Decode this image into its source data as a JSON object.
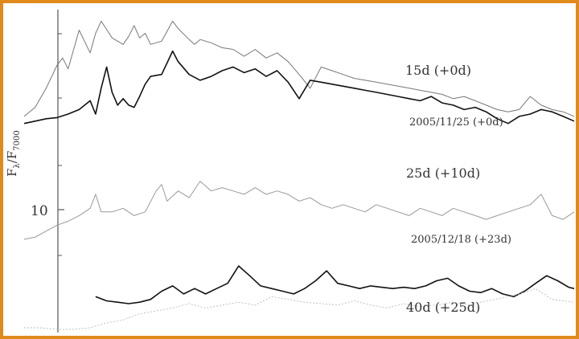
{
  "colors": {
    "frame": "#e08a1e",
    "axis": "#555555",
    "text": "#333333"
  },
  "chart_data": {
    "type": "line",
    "title": "",
    "xlabel": "",
    "ylabel": "F_λ / F_7000",
    "ylabel_main": "F",
    "ylabel_sub1": "λ",
    "ylabel_sep": "/F",
    "ylabel_sub2": "7000",
    "y_scale": "log",
    "y_tick_labels": [
      {
        "label": "10",
        "value": 10
      }
    ],
    "ylim": [
      6.4,
      30
    ],
    "xlim": [
      0,
      1
    ],
    "grid": false,
    "series": [
      {
        "name": "15d (+0d)",
        "label": "15d (+0d)",
        "color": "#777777",
        "width": 1.0,
        "x": [
          0.0,
          0.02,
          0.04,
          0.06,
          0.07,
          0.08,
          0.09,
          0.1,
          0.12,
          0.13,
          0.14,
          0.16,
          0.18,
          0.19,
          0.2,
          0.21,
          0.22,
          0.23,
          0.25,
          0.27,
          0.28,
          0.3,
          0.31,
          0.32,
          0.34,
          0.36,
          0.38,
          0.4,
          0.42,
          0.44,
          0.46,
          0.48,
          0.5,
          0.52,
          0.54,
          0.56,
          0.58,
          0.6,
          0.62,
          0.64,
          0.66,
          0.68,
          0.7,
          0.72,
          0.74,
          0.76,
          0.78,
          0.8,
          0.82,
          0.84,
          0.86,
          0.88,
          0.9,
          0.92,
          0.94,
          0.96,
          0.98,
          1.0
        ],
        "y": [
          18.0,
          18.8,
          20.6,
          23.0,
          23.8,
          22.6,
          24.8,
          27.2,
          24.4,
          26.8,
          28.4,
          26.2,
          25.4,
          26.4,
          27.8,
          26.2,
          26.8,
          25.4,
          25.8,
          28.4,
          27.4,
          26.0,
          25.4,
          26.0,
          25.6,
          25.0,
          24.8,
          24.0,
          24.8,
          23.8,
          24.4,
          23.4,
          22.0,
          20.6,
          22.8,
          22.4,
          22.0,
          21.6,
          21.4,
          21.2,
          21.0,
          20.8,
          20.6,
          20.4,
          20.2,
          20.0,
          19.6,
          19.8,
          19.4,
          19.0,
          18.6,
          18.4,
          18.6,
          19.8,
          19.0,
          18.6,
          18.4,
          18.0
        ]
      },
      {
        "name": "2005/11/25 (+0d)",
        "label": "2005/11/25 (+0d)",
        "color": "#111111",
        "width": 1.6,
        "x": [
          0.0,
          0.02,
          0.04,
          0.06,
          0.08,
          0.1,
          0.12,
          0.13,
          0.14,
          0.15,
          0.16,
          0.17,
          0.18,
          0.19,
          0.2,
          0.21,
          0.22,
          0.23,
          0.25,
          0.27,
          0.28,
          0.3,
          0.32,
          0.34,
          0.36,
          0.38,
          0.4,
          0.42,
          0.44,
          0.46,
          0.48,
          0.5,
          0.52,
          0.54,
          0.56,
          0.58,
          0.6,
          0.62,
          0.64,
          0.66,
          0.68,
          0.7,
          0.72,
          0.74,
          0.76,
          0.78,
          0.8,
          0.82,
          0.84,
          0.86,
          0.88,
          0.9,
          0.92,
          0.94,
          0.96,
          0.98,
          1.0
        ],
        "y": [
          17.4,
          17.6,
          17.8,
          17.9,
          18.2,
          18.6,
          19.4,
          18.2,
          20.6,
          22.8,
          20.2,
          19.0,
          19.6,
          19.0,
          18.8,
          19.8,
          21.0,
          21.8,
          22.0,
          24.6,
          23.4,
          22.0,
          21.4,
          21.8,
          22.4,
          22.8,
          22.2,
          22.6,
          21.8,
          22.4,
          21.2,
          19.6,
          21.4,
          21.2,
          21.0,
          20.8,
          20.6,
          20.4,
          20.2,
          20.0,
          19.8,
          19.6,
          19.4,
          19.8,
          19.2,
          19.0,
          18.6,
          18.8,
          18.4,
          17.8,
          17.4,
          18.0,
          18.2,
          18.6,
          18.4,
          18.0,
          17.6
        ]
      },
      {
        "name": "25d (+10d)",
        "label": "25d (+10d)",
        "color": "#999999",
        "width": 1.0,
        "x": [
          0.0,
          0.02,
          0.04,
          0.06,
          0.08,
          0.1,
          0.12,
          0.13,
          0.14,
          0.16,
          0.18,
          0.2,
          0.22,
          0.24,
          0.25,
          0.26,
          0.28,
          0.3,
          0.32,
          0.34,
          0.36,
          0.38,
          0.4,
          0.42,
          0.44,
          0.46,
          0.48,
          0.5,
          0.52,
          0.54,
          0.56,
          0.58,
          0.6,
          0.62,
          0.64,
          0.66,
          0.68,
          0.7,
          0.72,
          0.74,
          0.76,
          0.78,
          0.8,
          0.82,
          0.84,
          0.86,
          0.88,
          0.9,
          0.92,
          0.94,
          0.96,
          0.98,
          1.0
        ],
        "y": [
          10.0,
          10.1,
          10.4,
          10.7,
          10.9,
          11.2,
          11.6,
          12.4,
          11.4,
          11.4,
          11.6,
          11.2,
          11.4,
          12.6,
          13.0,
          12.0,
          12.6,
          12.2,
          13.2,
          12.6,
          12.8,
          12.6,
          12.4,
          12.8,
          12.4,
          12.6,
          12.4,
          12.0,
          12.2,
          11.8,
          11.6,
          11.8,
          11.6,
          11.4,
          11.8,
          11.6,
          11.4,
          11.2,
          11.6,
          11.4,
          11.2,
          11.6,
          11.4,
          11.2,
          11.0,
          11.2,
          11.4,
          11.6,
          11.8,
          12.4,
          11.2,
          11.0,
          11.4
        ]
      },
      {
        "name": "2005/12/18 (+23d)",
        "label": "2005/12/18 (+23d)",
        "color": "#111111",
        "width": 1.6,
        "x": [
          0.13,
          0.15,
          0.17,
          0.19,
          0.21,
          0.23,
          0.25,
          0.27,
          0.29,
          0.31,
          0.33,
          0.35,
          0.37,
          0.39,
          0.41,
          0.43,
          0.45,
          0.47,
          0.49,
          0.51,
          0.53,
          0.55,
          0.57,
          0.59,
          0.61,
          0.63,
          0.65,
          0.67,
          0.69,
          0.71,
          0.73,
          0.75,
          0.77,
          0.79,
          0.81,
          0.83,
          0.85,
          0.87,
          0.89,
          0.91,
          0.93,
          0.95,
          0.97,
          0.99,
          1.0
        ],
        "y": [
          7.6,
          7.45,
          7.4,
          7.35,
          7.4,
          7.5,
          7.8,
          8.0,
          7.7,
          7.9,
          7.7,
          7.9,
          8.1,
          8.8,
          8.4,
          8.0,
          7.9,
          7.8,
          7.7,
          7.9,
          8.2,
          8.6,
          8.1,
          8.0,
          7.9,
          8.0,
          7.95,
          7.9,
          7.95,
          7.9,
          8.0,
          8.2,
          8.3,
          8.0,
          7.8,
          7.75,
          7.9,
          7.7,
          7.6,
          7.8,
          8.1,
          8.4,
          8.2,
          7.95,
          7.9
        ]
      },
      {
        "name": "40d (+25d)",
        "label": "40d (+25d)",
        "color": "#bbbbbb",
        "width": 0.9,
        "dash": "2,2",
        "x": [
          0.0,
          0.03,
          0.06,
          0.09,
          0.12,
          0.15,
          0.18,
          0.21,
          0.24,
          0.27,
          0.3,
          0.33,
          0.36,
          0.39,
          0.42,
          0.45,
          0.48,
          0.51,
          0.54,
          0.57,
          0.6,
          0.63,
          0.66,
          0.69,
          0.72,
          0.75,
          0.78,
          0.81,
          0.84,
          0.87,
          0.9,
          0.93,
          0.96,
          1.0
        ],
        "y": [
          6.55,
          6.55,
          6.5,
          6.5,
          6.55,
          6.7,
          6.8,
          7.0,
          7.1,
          7.2,
          7.35,
          7.2,
          7.3,
          7.4,
          7.3,
          7.6,
          7.5,
          7.4,
          7.35,
          7.3,
          7.45,
          7.3,
          7.2,
          7.35,
          7.25,
          7.3,
          7.4,
          7.3,
          7.45,
          7.55,
          7.7,
          7.9,
          7.5,
          7.4
        ]
      }
    ]
  }
}
